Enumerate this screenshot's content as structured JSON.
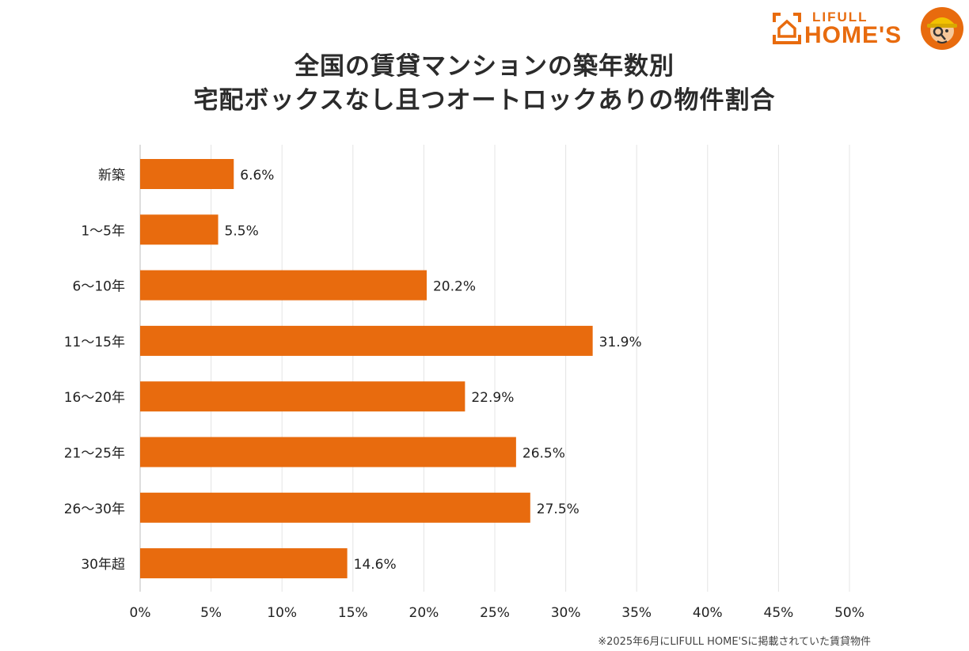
{
  "brand": {
    "small": "LIFULL",
    "big": "HOME'S",
    "accent": "#e86b0e"
  },
  "footnote": "※2025年6月にLIFULL HOME'Sに掲載されていた賃貸物件",
  "chart_data": {
    "type": "bar",
    "orientation": "horizontal",
    "title": [
      "全国の賃貸マンションの築年数別",
      "宅配ボックスなし且つオートロックありの物件割合"
    ],
    "categories": [
      "新築",
      "1～5年",
      "6～10年",
      "11～15年",
      "16～20年",
      "21～25年",
      "26～30年",
      "30年超"
    ],
    "values": [
      6.6,
      5.5,
      20.2,
      31.9,
      22.9,
      26.5,
      27.5,
      14.6
    ],
    "value_labels": [
      "6.6%",
      "5.5%",
      "20.2%",
      "31.9%",
      "22.9%",
      "26.5%",
      "27.5%",
      "14.6%"
    ],
    "xlim": [
      0,
      50
    ],
    "xticks": [
      0,
      5,
      10,
      15,
      20,
      25,
      30,
      35,
      40,
      45,
      50
    ],
    "xtick_labels": [
      "0%",
      "5%",
      "10%",
      "15%",
      "20%",
      "25%",
      "30%",
      "35%",
      "40%",
      "45%",
      "50%"
    ],
    "bar_color": "#e86b0e",
    "grid": true
  }
}
